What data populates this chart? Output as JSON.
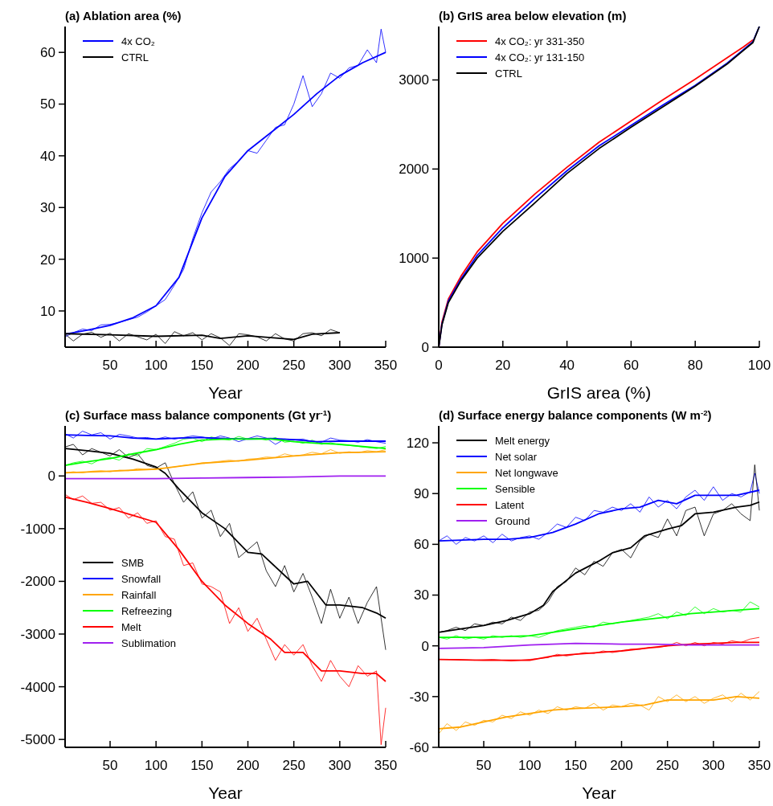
{
  "chart_data": [
    {
      "type": "line",
      "title": "(a) Ablation area (%)",
      "xlabel": "Year",
      "xlim": [
        1,
        350
      ],
      "xticks": [
        50,
        100,
        150,
        200,
        250,
        300,
        350
      ],
      "ylim": [
        3,
        65
      ],
      "yticks": [
        10,
        20,
        30,
        40,
        50,
        60
      ],
      "legend": "top left",
      "series": [
        {
          "color": "#0000ff",
          "x": [
            1,
            10,
            20,
            30,
            40,
            50,
            60,
            70,
            80,
            90,
            100,
            110,
            120,
            130,
            140,
            150,
            160,
            170,
            180,
            190,
            200,
            210,
            220,
            230,
            240,
            250,
            260,
            270,
            280,
            290,
            300,
            310,
            320,
            330,
            340,
            345,
            350
          ],
          "values": [
            5,
            5.8,
            6.5,
            6.2,
            7.3,
            7.4,
            7.8,
            8.3,
            8.8,
            9.8,
            11,
            12.2,
            15,
            18,
            24,
            29,
            33,
            35,
            37.5,
            39,
            41,
            40.5,
            43,
            45.5,
            46,
            50,
            55.5,
            49.5,
            52,
            56,
            55,
            57,
            57.5,
            60.5,
            58,
            64.5,
            60
          ]
        },
        {
          "color": "#000000",
          "x": [
            1,
            10,
            20,
            30,
            40,
            50,
            60,
            70,
            80,
            90,
            100,
            110,
            120,
            130,
            140,
            150,
            160,
            170,
            180,
            190,
            200,
            210,
            220,
            230,
            240,
            250,
            260,
            270,
            280,
            290,
            300
          ],
          "values": [
            5.5,
            4.2,
            5.5,
            5.9,
            4.9,
            5.7,
            4.2,
            5.6,
            5,
            4.4,
            5.5,
            3.7,
            6,
            5.2,
            5.8,
            4.4,
            5.6,
            4.8,
            3.3,
            5.6,
            5.4,
            5,
            4.2,
            5.6,
            4.6,
            4.2,
            5.6,
            5.8,
            5.2,
            6.4,
            5.8
          ]
        },
        {
          "name": "4x CO₂",
          "color": "#0000ff",
          "x": [
            1,
            25,
            50,
            75,
            100,
            125,
            150,
            175,
            200,
            225,
            250,
            275,
            300,
            325,
            350
          ],
          "values": [
            5.5,
            6.3,
            7.2,
            8.7,
            11,
            16.5,
            28,
            36,
            41,
            44.5,
            48,
            52,
            55.5,
            58,
            60
          ]
        },
        {
          "name": "CTRL",
          "color": "#000000",
          "x": [
            1,
            50,
            100,
            150,
            170,
            200,
            250,
            270,
            300
          ],
          "values": [
            5.6,
            5.4,
            5.1,
            5.3,
            4.7,
            5.2,
            4.5,
            5.5,
            5.8
          ]
        }
      ]
    },
    {
      "type": "line",
      "title": "(b) GrIS area below elevation (m)",
      "xlabel": "GrIS area (%)",
      "xlim": [
        0,
        100
      ],
      "xticks": [
        0,
        20,
        40,
        60,
        80,
        100
      ],
      "ylim": [
        0,
        3600
      ],
      "yticks": [
        0,
        1000,
        2000,
        3000
      ],
      "legend": "top left",
      "series": [
        {
          "name": "4x CO₂: yr 331-350",
          "color": "#ff0000",
          "x": [
            0,
            1,
            3,
            7,
            12,
            20,
            30,
            40,
            50,
            60,
            70,
            80,
            90,
            95,
            98
          ],
          "values": [
            0,
            280,
            540,
            800,
            1070,
            1390,
            1720,
            2020,
            2300,
            2540,
            2780,
            3010,
            3250,
            3370,
            3450
          ]
        },
        {
          "name": "4x CO₂: yr 131-150",
          "color": "#0000ff",
          "x": [
            0,
            1,
            3,
            7,
            12,
            20,
            30,
            40,
            50,
            60,
            70,
            80,
            90,
            95,
            98,
            100
          ],
          "values": [
            0,
            260,
            520,
            770,
            1030,
            1340,
            1670,
            1980,
            2260,
            2490,
            2720,
            2940,
            3190,
            3340,
            3430,
            3600
          ]
        },
        {
          "name": "CTRL",
          "color": "#000000",
          "x": [
            0,
            1,
            3,
            7,
            12,
            20,
            30,
            40,
            50,
            60,
            70,
            80,
            90,
            95,
            98,
            100
          ],
          "values": [
            0,
            250,
            500,
            750,
            1000,
            1300,
            1620,
            1950,
            2230,
            2470,
            2700,
            2930,
            3180,
            3330,
            3420,
            3600
          ]
        }
      ]
    },
    {
      "type": "line",
      "title": "(c) Surface mass balance components (Gt yr$^{-1}$)",
      "xlabel": "Year",
      "xlim": [
        1,
        350
      ],
      "xticks": [
        50,
        100,
        150,
        200,
        250,
        300,
        350
      ],
      "ylim": [
        -5150,
        950
      ],
      "yticks": [
        -5000,
        -4000,
        -3000,
        -2000,
        -1000,
        0
      ],
      "legend": "bottom left",
      "series": [
        {
          "color": "#0000ff",
          "x": [
            1,
            10,
            20,
            30,
            40,
            50,
            60,
            70,
            80,
            90,
            100,
            110,
            120,
            130,
            140,
            150,
            160,
            170,
            180,
            190,
            200,
            210,
            220,
            230,
            240,
            250,
            260,
            270,
            280,
            290,
            300,
            310,
            320,
            330,
            340,
            350
          ],
          "values": [
            800,
            720,
            850,
            780,
            820,
            700,
            790,
            760,
            720,
            730,
            700,
            740,
            700,
            730,
            760,
            740,
            700,
            760,
            720,
            650,
            710,
            760,
            720,
            600,
            700,
            690,
            700,
            650,
            640,
            720,
            680,
            670,
            640,
            690,
            650,
            620
          ]
        },
        {
          "color": "#ffa500",
          "x": [
            1,
            10,
            20,
            30,
            40,
            50,
            60,
            70,
            80,
            90,
            100,
            110,
            120,
            130,
            140,
            150,
            160,
            170,
            180,
            190,
            200,
            210,
            220,
            230,
            240,
            250,
            260,
            270,
            280,
            290,
            300,
            310,
            320,
            330,
            340,
            350
          ],
          "values": [
            60,
            80,
            60,
            90,
            100,
            80,
            110,
            100,
            140,
            120,
            130,
            150,
            170,
            200,
            220,
            250,
            260,
            280,
            300,
            280,
            320,
            330,
            360,
            350,
            420,
            380,
            400,
            450,
            420,
            500,
            430,
            460,
            440,
            480,
            460,
            500
          ]
        },
        {
          "color": "#00ff00",
          "x": [
            1,
            10,
            20,
            30,
            40,
            50,
            60,
            70,
            80,
            90,
            100,
            110,
            120,
            130,
            140,
            150,
            160,
            170,
            180,
            190,
            200,
            210,
            220,
            230,
            240,
            250,
            260,
            270,
            280,
            290,
            300,
            310,
            320,
            330,
            340,
            350
          ],
          "values": [
            200,
            250,
            280,
            230,
            320,
            350,
            300,
            420,
            380,
            520,
            500,
            560,
            620,
            700,
            720,
            650,
            740,
            700,
            680,
            750,
            700,
            720,
            680,
            730,
            640,
            660,
            620,
            680,
            600,
            630,
            590,
            580,
            560,
            540,
            520,
            560
          ]
        },
        {
          "color": "#000000",
          "x": [
            1,
            10,
            20,
            30,
            40,
            50,
            60,
            70,
            80,
            90,
            100,
            110,
            120,
            130,
            140,
            150,
            160,
            170,
            180,
            190,
            200,
            210,
            220,
            230,
            240,
            250,
            260,
            270,
            280,
            290,
            300,
            310,
            320,
            330,
            340,
            350
          ],
          "values": [
            550,
            600,
            400,
            520,
            450,
            380,
            500,
            350,
            420,
            200,
            150,
            250,
            -150,
            -500,
            -300,
            -800,
            -650,
            -1150,
            -900,
            -1550,
            -1400,
            -1250,
            -1800,
            -2100,
            -1700,
            -2200,
            -1850,
            -2300,
            -2800,
            -2150,
            -2700,
            -2300,
            -2800,
            -2400,
            -2100,
            -3300
          ]
        },
        {
          "color": "#ff0000",
          "x": [
            1,
            10,
            20,
            30,
            40,
            50,
            60,
            70,
            80,
            90,
            100,
            110,
            120,
            130,
            140,
            150,
            160,
            170,
            180,
            190,
            200,
            210,
            220,
            230,
            240,
            250,
            260,
            270,
            280,
            290,
            300,
            310,
            320,
            330,
            340,
            345,
            350
          ],
          "values": [
            -350,
            -450,
            -380,
            -520,
            -500,
            -650,
            -600,
            -800,
            -700,
            -900,
            -850,
            -1150,
            -1200,
            -1700,
            -1650,
            -2050,
            -2100,
            -2200,
            -2800,
            -2500,
            -2950,
            -2700,
            -3100,
            -3500,
            -3200,
            -3400,
            -3200,
            -3600,
            -3900,
            -3500,
            -3800,
            -4000,
            -3600,
            -3800,
            -3700,
            -5100,
            -4400
          ]
        },
        {
          "name": "SMB",
          "color": "#000000",
          "x": [
            1,
            25,
            50,
            75,
            100,
            110,
            125,
            150,
            175,
            200,
            215,
            250,
            265,
            285,
            300,
            325,
            340,
            350
          ],
          "values": [
            520,
            480,
            430,
            320,
            170,
            50,
            -250,
            -700,
            -1000,
            -1450,
            -1480,
            -2050,
            -2000,
            -2450,
            -2450,
            -2500,
            -2600,
            -2700
          ]
        },
        {
          "name": "Snowfall",
          "color": "#0000ff",
          "x": [
            1,
            25,
            50,
            75,
            100,
            125,
            150,
            175,
            200,
            225,
            250,
            275,
            300,
            325,
            350
          ],
          "values": [
            780,
            770,
            760,
            720,
            700,
            720,
            730,
            710,
            700,
            710,
            690,
            650,
            660,
            660,
            660
          ]
        },
        {
          "name": "Rainfall",
          "color": "#ffa500",
          "x": [
            1,
            50,
            100,
            150,
            200,
            250,
            300,
            350
          ],
          "values": [
            60,
            90,
            130,
            240,
            300,
            380,
            440,
            460
          ]
        },
        {
          "name": "Refreezing",
          "color": "#00ff00",
          "x": [
            1,
            25,
            50,
            75,
            100,
            125,
            150,
            175,
            200,
            225,
            250,
            275,
            300,
            325,
            350
          ],
          "values": [
            200,
            270,
            330,
            420,
            500,
            600,
            680,
            700,
            700,
            700,
            650,
            620,
            600,
            560,
            520
          ]
        },
        {
          "name": "Melt",
          "color": "#ff0000",
          "x": [
            1,
            25,
            50,
            75,
            100,
            125,
            150,
            175,
            200,
            225,
            240,
            260,
            280,
            300,
            325,
            340,
            350
          ],
          "values": [
            -400,
            -500,
            -620,
            -750,
            -880,
            -1400,
            -2000,
            -2450,
            -2800,
            -3100,
            -3350,
            -3350,
            -3700,
            -3700,
            -3750,
            -3750,
            -3900
          ]
        },
        {
          "name": "Sublimation",
          "color": "#a020f0",
          "x": [
            1,
            50,
            100,
            150,
            200,
            250,
            300,
            350
          ],
          "values": [
            -50,
            -50,
            -50,
            -40,
            -30,
            -20,
            0,
            0
          ]
        }
      ]
    },
    {
      "type": "line",
      "title": "(d) Surface energy balance components (W m$^{-2}$)",
      "xlabel": "Year",
      "xlim": [
        1,
        350
      ],
      "xticks": [
        50,
        100,
        150,
        200,
        250,
        300,
        350
      ],
      "ylim": [
        -60,
        130
      ],
      "yticks": [
        -60,
        -30,
        0,
        30,
        60,
        90,
        120
      ],
      "legend": "top left",
      "series": [
        {
          "color": "#0000ff",
          "x": [
            1,
            10,
            20,
            30,
            40,
            50,
            60,
            70,
            80,
            90,
            100,
            110,
            120,
            130,
            140,
            150,
            160,
            170,
            180,
            190,
            200,
            210,
            220,
            230,
            240,
            250,
            260,
            270,
            280,
            290,
            300,
            310,
            320,
            330,
            340,
            345,
            350
          ],
          "values": [
            62,
            65,
            60,
            64,
            62,
            65,
            61,
            66,
            62,
            64,
            65,
            63,
            67,
            72,
            70,
            76,
            74,
            80,
            79,
            82,
            80,
            84,
            79,
            88,
            82,
            86,
            81,
            88,
            92,
            86,
            94,
            86,
            90,
            88,
            91,
            102,
            90
          ]
        },
        {
          "color": "#000000",
          "x": [
            1,
            10,
            20,
            30,
            40,
            50,
            60,
            70,
            80,
            90,
            100,
            110,
            120,
            130,
            140,
            150,
            160,
            170,
            180,
            190,
            200,
            210,
            220,
            230,
            240,
            250,
            260,
            270,
            280,
            290,
            300,
            310,
            320,
            330,
            340,
            345,
            350
          ],
          "values": [
            8,
            9,
            11,
            9,
            13,
            12,
            14,
            13,
            17,
            15,
            20,
            21,
            26,
            35,
            38,
            46,
            42,
            50,
            47,
            55,
            57,
            52,
            62,
            66,
            64,
            75,
            65,
            80,
            82,
            65,
            78,
            80,
            84,
            78,
            74,
            107,
            80
          ]
        },
        {
          "color": "#ffa500",
          "x": [
            1,
            10,
            20,
            30,
            40,
            50,
            60,
            70,
            80,
            90,
            100,
            110,
            120,
            130,
            140,
            150,
            160,
            170,
            180,
            190,
            200,
            210,
            220,
            230,
            240,
            250,
            260,
            270,
            280,
            290,
            300,
            310,
            320,
            330,
            340,
            350
          ],
          "values": [
            -52,
            -46,
            -50,
            -45,
            -47,
            -44,
            -45,
            -41,
            -43,
            -39,
            -41,
            -38,
            -40,
            -36,
            -38,
            -36,
            -37,
            -34,
            -38,
            -35,
            -36,
            -34,
            -35,
            -38,
            -30,
            -33,
            -29,
            -33,
            -30,
            -34,
            -31,
            -29,
            -33,
            -28,
            -32,
            -27
          ]
        },
        {
          "color": "#00ff00",
          "x": [
            1,
            10,
            20,
            30,
            40,
            50,
            60,
            70,
            80,
            90,
            100,
            110,
            120,
            130,
            140,
            150,
            160,
            170,
            180,
            190,
            200,
            210,
            220,
            230,
            240,
            250,
            260,
            270,
            280,
            290,
            300,
            310,
            320,
            330,
            340,
            350
          ],
          "values": [
            5,
            4,
            6,
            4,
            5,
            4,
            6,
            5,
            6,
            5,
            6,
            5,
            7,
            9,
            10,
            11,
            12,
            11,
            14,
            13,
            14,
            15,
            16,
            17,
            19,
            16,
            20,
            18,
            23,
            19,
            22,
            20,
            21,
            20,
            26,
            23
          ]
        },
        {
          "color": "#ff0000",
          "x": [
            1,
            20,
            40,
            60,
            80,
            100,
            120,
            130,
            140,
            150,
            160,
            170,
            180,
            190,
            200,
            210,
            220,
            230,
            240,
            250,
            260,
            270,
            280,
            290,
            300,
            310,
            320,
            330,
            340,
            350
          ],
          "values": [
            -8,
            -8,
            -8.5,
            -8,
            -9,
            -8,
            -7,
            -5,
            -6,
            -5,
            -4,
            -4.5,
            -3,
            -4,
            -3,
            -2,
            -2,
            -1,
            -1,
            0,
            2,
            0,
            2,
            0,
            2,
            1,
            3,
            2,
            4,
            5
          ]
        },
        {
          "name": "Melt energy",
          "color": "#000000",
          "x": [
            1,
            25,
            50,
            75,
            100,
            115,
            125,
            150,
            175,
            190,
            210,
            225,
            250,
            265,
            280,
            300,
            325,
            340,
            350
          ],
          "values": [
            8,
            10,
            12,
            15,
            19,
            24,
            32,
            43,
            50,
            55,
            58,
            65,
            69,
            71,
            78,
            79,
            82,
            83,
            85
          ]
        },
        {
          "name": "Net solar",
          "color": "#0000ff",
          "x": [
            1,
            50,
            75,
            100,
            125,
            150,
            175,
            200,
            220,
            240,
            260,
            280,
            300,
            325,
            350
          ],
          "values": [
            62,
            63,
            63,
            64,
            67,
            72,
            78,
            81,
            82,
            86,
            84,
            89,
            89,
            89,
            92
          ]
        },
        {
          "name": "Net longwave",
          "color": "#ffa500",
          "x": [
            1,
            25,
            50,
            75,
            100,
            125,
            150,
            200,
            225,
            250,
            275,
            300,
            325,
            350
          ],
          "values": [
            -49,
            -48,
            -45,
            -42,
            -40,
            -38,
            -37,
            -36,
            -35,
            -32,
            -32,
            -32,
            -30,
            -31
          ]
        },
        {
          "name": "Sensible",
          "color": "#00ff00",
          "x": [
            1,
            50,
            100,
            125,
            150,
            200,
            250,
            275,
            300,
            325,
            350
          ],
          "values": [
            5,
            5,
            6,
            8,
            10,
            14,
            17,
            19,
            20,
            21,
            22
          ]
        },
        {
          "name": "Latent",
          "color": "#ff0000",
          "x": [
            1,
            50,
            100,
            125,
            150,
            200,
            250,
            275,
            300,
            325,
            350
          ],
          "values": [
            -8,
            -8.5,
            -8.5,
            -6,
            -5,
            -3,
            0,
            1,
            1.5,
            2,
            2
          ]
        },
        {
          "name": "Ground",
          "color": "#a020f0",
          "x": [
            1,
            50,
            100,
            150,
            200,
            235,
            275,
            350
          ],
          "values": [
            -1.5,
            -1,
            0.5,
            1.5,
            1,
            1,
            0.5,
            0.5
          ]
        }
      ]
    }
  ]
}
